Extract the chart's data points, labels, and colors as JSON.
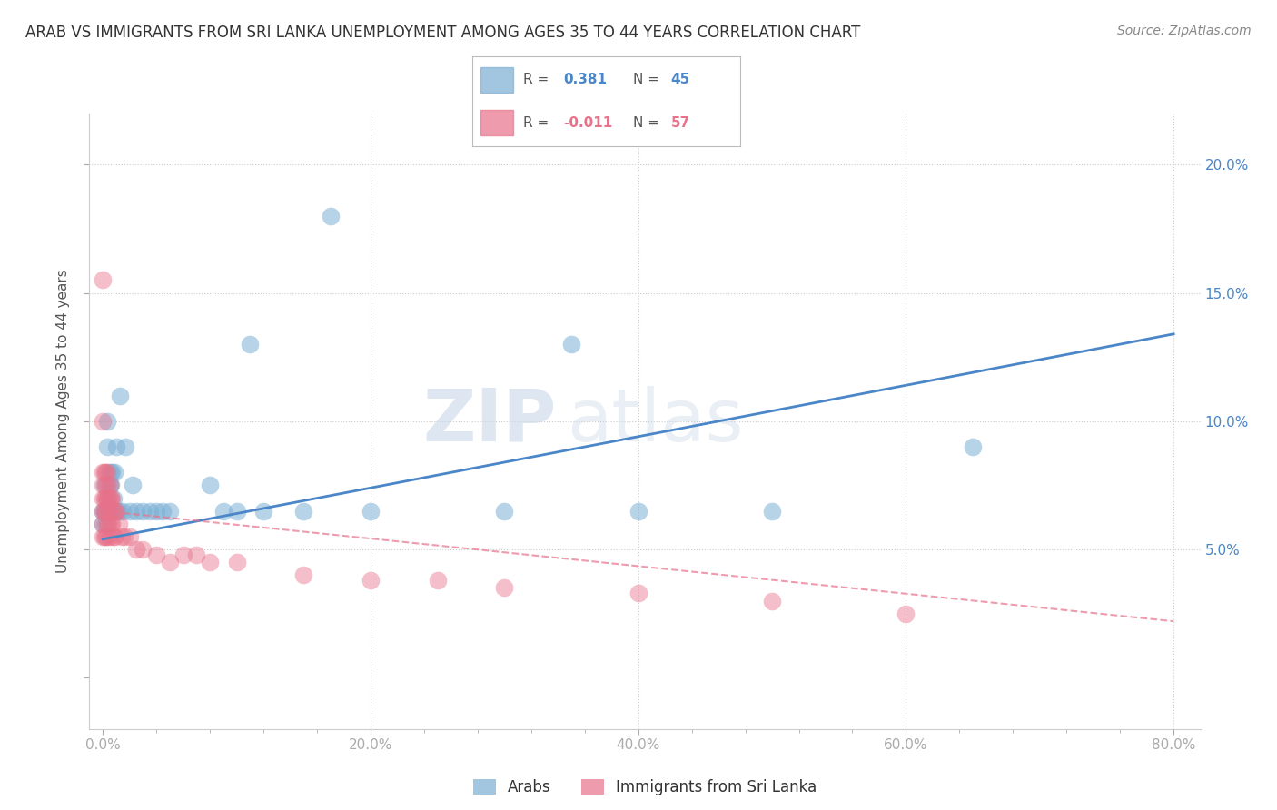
{
  "title": "ARAB VS IMMIGRANTS FROM SRI LANKA UNEMPLOYMENT AMONG AGES 35 TO 44 YEARS CORRELATION CHART",
  "source": "Source: ZipAtlas.com",
  "ylabel": "Unemployment Among Ages 35 to 44 years",
  "xlabel_ticks": [
    "0.0%",
    "",
    "",
    "",
    "",
    "20.0%",
    "",
    "",
    "",
    "",
    "40.0%",
    "",
    "",
    "",
    "",
    "60.0%",
    "",
    "",
    "",
    "",
    "80.0%"
  ],
  "xlabel_vals": [
    0.0,
    0.04,
    0.08,
    0.12,
    0.16,
    0.2,
    0.24,
    0.28,
    0.32,
    0.36,
    0.4,
    0.44,
    0.48,
    0.52,
    0.56,
    0.6,
    0.64,
    0.68,
    0.72,
    0.76,
    0.8
  ],
  "ylabel_ticks_right": [
    "5.0%",
    "10.0%",
    "15.0%",
    "20.0%"
  ],
  "ylabel_vals": [
    0.05,
    0.1,
    0.15,
    0.2
  ],
  "xlim": [
    -0.01,
    0.82
  ],
  "ylim": [
    -0.02,
    0.22
  ],
  "arab_R": 0.381,
  "arab_N": 45,
  "srilanka_R": -0.011,
  "srilanka_N": 57,
  "arab_color": "#7bafd4",
  "srilanka_color": "#e8728a",
  "arab_line_color": "#4a86c8",
  "srilanka_line_color": "#e8728a",
  "watermark_zip": "ZIP",
  "watermark_atlas": "atlas",
  "background_color": "#ffffff",
  "grid_color": "#dddddd",
  "arab_scatter_x": [
    0.0,
    0.0,
    0.001,
    0.001,
    0.002,
    0.002,
    0.003,
    0.003,
    0.003,
    0.004,
    0.005,
    0.005,
    0.005,
    0.006,
    0.007,
    0.007,
    0.008,
    0.009,
    0.01,
    0.01,
    0.012,
    0.013,
    0.015,
    0.017,
    0.02,
    0.022,
    0.025,
    0.03,
    0.035,
    0.04,
    0.045,
    0.05,
    0.08,
    0.09,
    0.1,
    0.11,
    0.12,
    0.15,
    0.17,
    0.2,
    0.3,
    0.35,
    0.4,
    0.5,
    0.65
  ],
  "arab_scatter_y": [
    0.065,
    0.06,
    0.075,
    0.065,
    0.065,
    0.06,
    0.1,
    0.09,
    0.07,
    0.065,
    0.08,
    0.075,
    0.065,
    0.075,
    0.08,
    0.065,
    0.07,
    0.08,
    0.09,
    0.065,
    0.065,
    0.11,
    0.065,
    0.09,
    0.065,
    0.075,
    0.065,
    0.065,
    0.065,
    0.065,
    0.065,
    0.065,
    0.075,
    0.065,
    0.065,
    0.13,
    0.065,
    0.065,
    0.18,
    0.065,
    0.065,
    0.13,
    0.065,
    0.065,
    0.09
  ],
  "srilanka_scatter_x": [
    0.0,
    0.0,
    0.0,
    0.0,
    0.0,
    0.0,
    0.0,
    0.0,
    0.001,
    0.001,
    0.001,
    0.001,
    0.002,
    0.002,
    0.002,
    0.002,
    0.002,
    0.003,
    0.003,
    0.003,
    0.003,
    0.003,
    0.003,
    0.004,
    0.004,
    0.005,
    0.005,
    0.005,
    0.005,
    0.006,
    0.006,
    0.007,
    0.007,
    0.008,
    0.008,
    0.009,
    0.009,
    0.01,
    0.012,
    0.014,
    0.016,
    0.02,
    0.025,
    0.03,
    0.04,
    0.05,
    0.06,
    0.07,
    0.08,
    0.1,
    0.15,
    0.2,
    0.25,
    0.3,
    0.4,
    0.5,
    0.6
  ],
  "srilanka_scatter_y": [
    0.155,
    0.1,
    0.08,
    0.075,
    0.07,
    0.065,
    0.06,
    0.055,
    0.08,
    0.07,
    0.065,
    0.055,
    0.08,
    0.075,
    0.07,
    0.065,
    0.055,
    0.08,
    0.075,
    0.07,
    0.065,
    0.06,
    0.055,
    0.07,
    0.06,
    0.075,
    0.07,
    0.065,
    0.055,
    0.07,
    0.06,
    0.07,
    0.06,
    0.065,
    0.055,
    0.065,
    0.055,
    0.065,
    0.06,
    0.055,
    0.055,
    0.055,
    0.05,
    0.05,
    0.048,
    0.045,
    0.048,
    0.048,
    0.045,
    0.045,
    0.04,
    0.038,
    0.038,
    0.035,
    0.033,
    0.03,
    0.025
  ],
  "arab_line_x0": 0.0,
  "arab_line_y0": 0.054,
  "arab_line_x1": 0.8,
  "arab_line_y1": 0.134,
  "sl_line_x0": 0.0,
  "sl_line_y0": 0.065,
  "sl_line_x1": 0.8,
  "sl_line_y1": 0.022
}
